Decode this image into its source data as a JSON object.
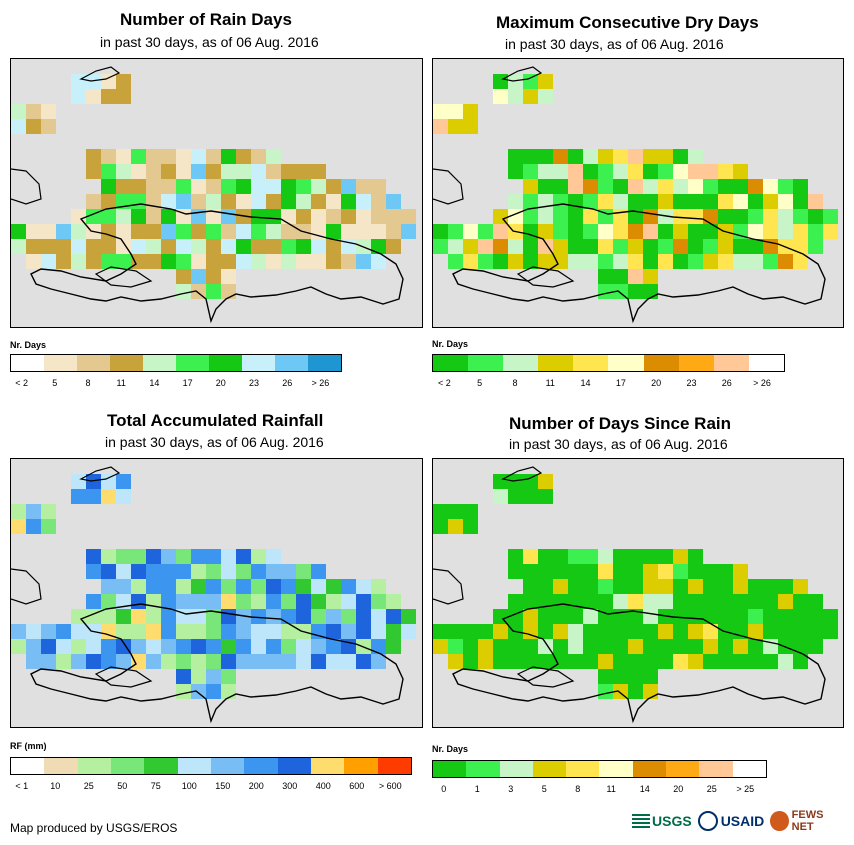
{
  "panels": [
    {
      "title": "Number of Rain Days",
      "subtitle": "in past 30 days, as of 06 Aug. 2016",
      "legend": {
        "title": "Nr. Days",
        "colors": [
          "#ffffff",
          "#f5e6c8",
          "#e3c990",
          "#c8a23a",
          "#c8f5c8",
          "#3cf050",
          "#14c814",
          "#c8f0fa",
          "#6ec8f5",
          "#1e96d2"
        ],
        "labels": [
          "< 2",
          "5",
          "8",
          "11",
          "14",
          "17",
          "20",
          "23",
          "26",
          "> 26"
        ]
      }
    },
    {
      "title": "Maximum Consecutive Dry Days",
      "subtitle": "in past 30 days, as of 06 Aug. 2016",
      "legend": {
        "title": "Nr. Days",
        "colors": [
          "#14c814",
          "#3cf050",
          "#c8f5c8",
          "#dccd00",
          "#ffe650",
          "#ffffc8",
          "#dc8c00",
          "#ffaa14",
          "#ffc896",
          "#ffffff"
        ],
        "labels": [
          "< 2",
          "5",
          "8",
          "11",
          "14",
          "17",
          "20",
          "23",
          "26",
          "> 26"
        ]
      }
    },
    {
      "title": "Total Accumulated Rainfall",
      "subtitle": "in past 30 days, as of 06 Aug. 2016",
      "legend": {
        "title": "RF (mm)",
        "colors": [
          "#ffffff",
          "#f0dcb4",
          "#b4f0a0",
          "#78e678",
          "#32c832",
          "#bee6fa",
          "#78bef5",
          "#3c96f0",
          "#1e64dc",
          "#ffdc6e",
          "#ffa000",
          "#ff3c00"
        ],
        "labels": [
          "< 1",
          "10",
          "25",
          "50",
          "75",
          "100",
          "150",
          "200",
          "300",
          "400",
          "600",
          "> 600"
        ]
      }
    },
    {
      "title": "Number of Days Since Rain",
      "subtitle": "in past 30 days, as of 06 Aug. 2016",
      "legend": {
        "title": "Nr. Days",
        "colors": [
          "#14c814",
          "#3cf050",
          "#c8f5c8",
          "#dccd00",
          "#ffe650",
          "#ffffc8",
          "#dc8c00",
          "#ffaa14",
          "#ffc896",
          "#ffffff"
        ],
        "labels": [
          "0",
          "1",
          "3",
          "5",
          "8",
          "11",
          "14",
          "20",
          "25",
          "> 25"
        ]
      }
    }
  ],
  "footer": "Map produced by USGS/EROS",
  "logos": {
    "usgs": "USGS",
    "usaid": "USAID",
    "fews": "FEWS NET"
  }
}
